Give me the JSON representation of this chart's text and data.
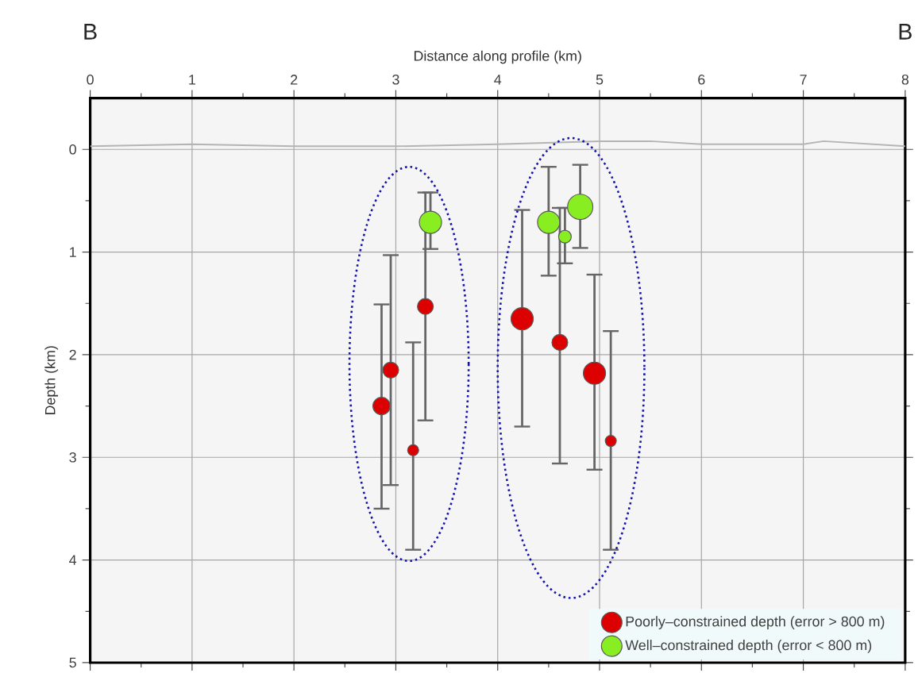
{
  "chart_data": {
    "type": "bubble",
    "xlabel": "Distance along profile (km)",
    "ylabel": "Depth (km)",
    "annotations": [
      "B",
      "B"
    ],
    "xlim": [
      0,
      8
    ],
    "ylim": [
      5,
      -0.5
    ],
    "xticks": [
      0,
      1,
      2,
      3,
      4,
      5,
      6,
      7,
      8
    ],
    "yticks": [
      0,
      1,
      2,
      3,
      4,
      5
    ],
    "grid": true,
    "legend": "bottom right",
    "series": [
      {
        "type": "line",
        "color": "#b4b4b4",
        "x": [
          0,
          1,
          2,
          3,
          4,
          5,
          5.5,
          6,
          7,
          7.2,
          8
        ],
        "values": [
          -0.03,
          -0.05,
          -0.03,
          -0.03,
          -0.05,
          -0.08,
          -0.08,
          -0.05,
          -0.05,
          -0.08,
          -0.03
        ]
      },
      {
        "name": "Poorly–constrained depth (error > 800 m)",
        "color": "#dd0000",
        "x": [
          2.86,
          2.95,
          3.17,
          3.29,
          4.24,
          4.61,
          4.95,
          5.11
        ],
        "values": [
          2.5,
          2.15,
          2.93,
          1.53,
          1.65,
          1.88,
          2.18,
          2.84
        ],
        "sizes": [
          0.47,
          0.39,
          0.19,
          0.39,
          0.77,
          0.39,
          0.77,
          0.19
        ],
        "errors": [
          [
            1.51,
            3.5
          ],
          [
            1.03,
            3.27
          ],
          [
            1.88,
            3.9
          ],
          [
            0.42,
            2.64
          ],
          [
            0.59,
            2.7
          ],
          [
            0.57,
            3.06
          ],
          [
            1.22,
            3.12
          ],
          [
            1.77,
            3.9
          ]
        ]
      },
      {
        "name": "Well–constrained depth (error < 800 m)",
        "color": "#88ee22",
        "x": [
          3.34,
          4.5,
          4.66,
          4.81
        ],
        "values": [
          0.71,
          0.71,
          0.85,
          0.56
        ],
        "sizes": [
          0.77,
          0.77,
          0.25,
          1
        ],
        "errors": [
          [
            0.42,
            0.97
          ],
          [
            0.17,
            1.23
          ],
          [
            0.57,
            1.11
          ],
          [
            0.15,
            0.96
          ]
        ]
      }
    ]
  }
}
